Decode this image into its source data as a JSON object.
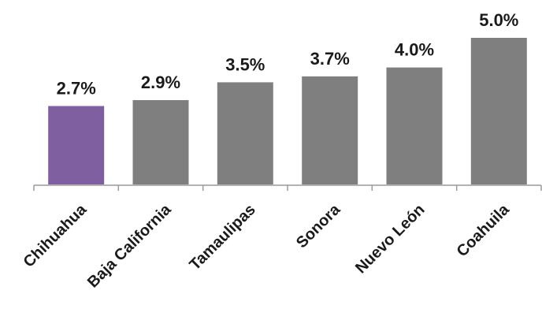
{
  "chart_data": {
    "type": "bar",
    "categories": [
      "Chihuahua",
      "Baja California",
      "Tamaulipas",
      "Sonora",
      "Nuevo León",
      "Coahuila"
    ],
    "values": [
      2.7,
      2.9,
      3.5,
      3.7,
      4.0,
      5.0
    ],
    "value_labels": [
      "2.7%",
      "2.9%",
      "3.5%",
      "3.7%",
      "4.0%",
      "5.0%"
    ],
    "title": "",
    "xlabel": "",
    "ylabel": "",
    "ylim": [
      0,
      5.0
    ],
    "grid": false,
    "legend": "none",
    "colors": {
      "highlight": "#7f5fa0",
      "default": "#7f7f7f",
      "axis": "#9a9a9a"
    },
    "highlight_index": 0
  }
}
